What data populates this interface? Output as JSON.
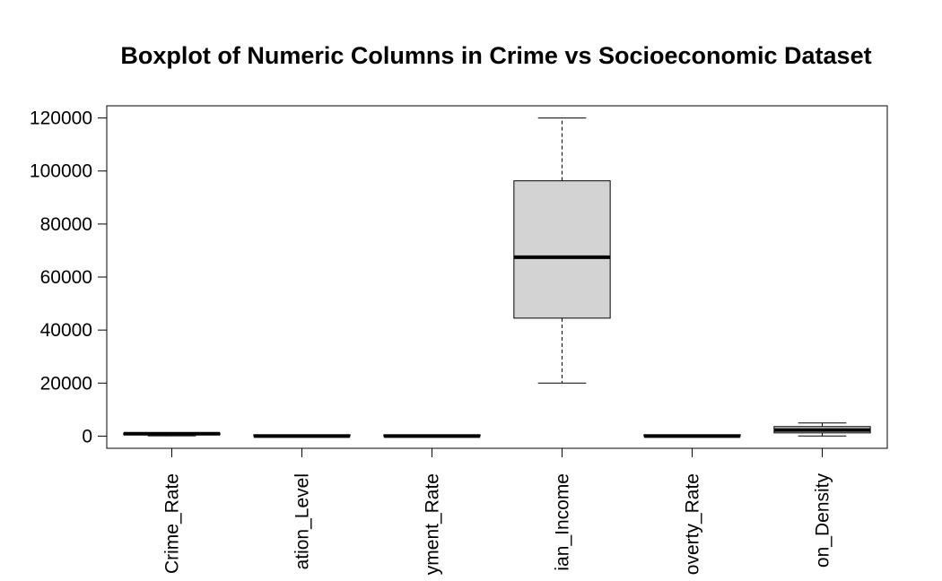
{
  "chart_data": {
    "type": "boxplot",
    "title": "Boxplot of Numeric Columns in Crime vs Socioeconomic Dataset",
    "xlabel": "",
    "ylabel": "",
    "ylim": [
      -4600,
      124600
    ],
    "yticks": [
      0,
      20000,
      40000,
      60000,
      80000,
      100000,
      120000
    ],
    "ytick_labels": [
      "0",
      "20000",
      "40000",
      "60000",
      "80000",
      "100000",
      "120000"
    ],
    "categories": [
      "Crime_Rate",
      "Education_Level",
      "Unemployment_Rate",
      "Median_Income",
      "Poverty_Rate",
      "Population_Density"
    ],
    "category_labels_visible": [
      "Crime_Rate",
      "ation_Level",
      "yment_Rate",
      "ian_Income",
      "overty_Rate",
      "on_Density"
    ],
    "boxes": [
      {
        "name": "Crime_Rate",
        "min": 100,
        "q1": 600,
        "median": 900,
        "q3": 1100,
        "max": 1300
      },
      {
        "name": "Education_Level",
        "min": 0,
        "q1": 8,
        "median": 12,
        "q3": 16,
        "max": 20
      },
      {
        "name": "Unemployment_Rate",
        "min": 0,
        "q1": 3,
        "median": 6,
        "q3": 9,
        "max": 12
      },
      {
        "name": "Median_Income",
        "min": 20000,
        "q1": 44500,
        "median": 67500,
        "q3": 96300,
        "max": 120000
      },
      {
        "name": "Poverty_Rate",
        "min": 0,
        "q1": 8,
        "median": 15,
        "q3": 22,
        "max": 30
      },
      {
        "name": "Population_Density",
        "min": 50,
        "q1": 1200,
        "median": 2300,
        "q3": 3600,
        "max": 4950
      }
    ],
    "box_fill": "#d3d3d3",
    "line_color": "#000000",
    "grid": false,
    "legend": "none"
  }
}
